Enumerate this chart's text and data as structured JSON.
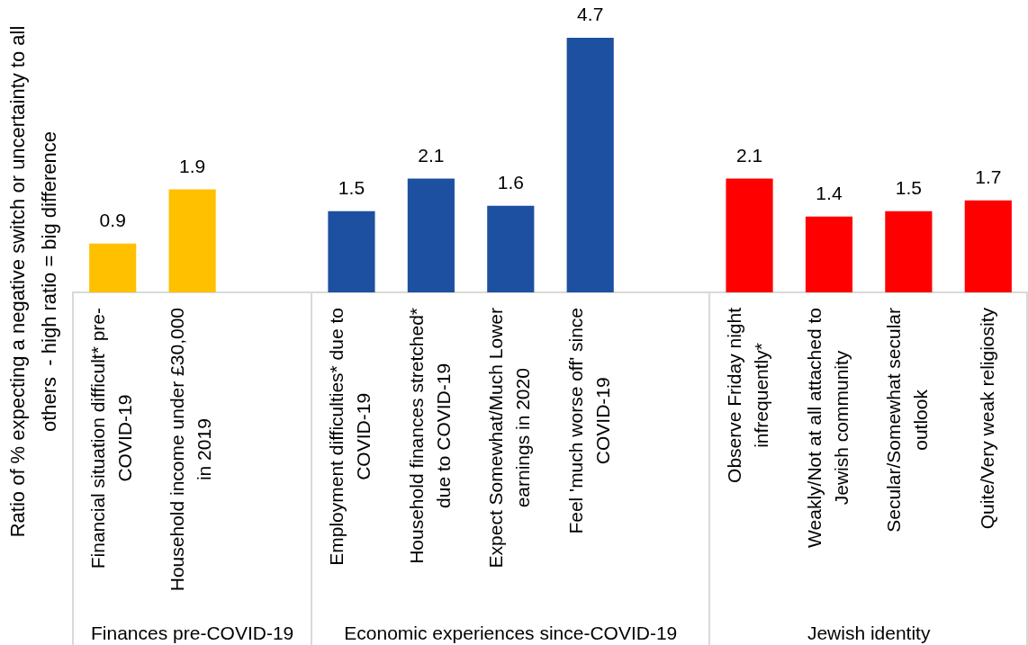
{
  "chart_data": {
    "type": "bar",
    "ylabel": "Ratio of % expecting a negative switch or uncertainty to all others  - high ratio = big difference",
    "categories": [
      "Financial situation difficult* pre-COVID-19",
      "Household income under £30,000 in 2019",
      null,
      "Employment difficulties* due to COVID-19",
      "Household finances stretched* due to COVID-19",
      "Expect Somewhat/Much Lower earnings in 2020",
      "Feel 'much worse off' since COVID-19",
      null,
      "Observe Friday night infrequently*",
      "Weakly/Not at all attached to Jewish community",
      "Secular/Somewhat secular outlook",
      "Quite/Very weak religiosity"
    ],
    "values": [
      0.9,
      1.9,
      null,
      1.5,
      2.1,
      1.6,
      4.7,
      null,
      2.1,
      1.4,
      1.5,
      1.7
    ],
    "colors": [
      "#ffc000",
      "#ffc000",
      null,
      "#1d50a0",
      "#1d50a0",
      "#1d50a0",
      "#1d50a0",
      null,
      "#ff0000",
      "#ff0000",
      "#ff0000",
      "#ff0000"
    ],
    "data_labels": true,
    "tick_labels": "x",
    "annotations": [
      "Finances pre-COVID-19",
      "Economic experiences since-COVID-19",
      "Jewish identity"
    ]
  }
}
